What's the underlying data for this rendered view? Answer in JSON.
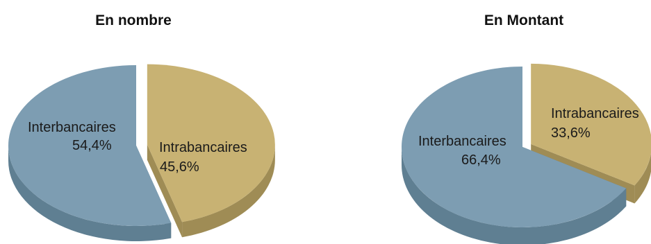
{
  "chart_data": [
    {
      "type": "pie",
      "title": "En nombre",
      "slices": [
        {
          "label": "Interbancaires",
          "value": 54.4,
          "display": "54,4%",
          "color": "#7d9db2",
          "side": "#5f7f92"
        },
        {
          "label": "Intrabancaires",
          "value": 45.6,
          "display": "45,6%",
          "color": "#c8b273",
          "side": "#9f8c55"
        }
      ],
      "exploded_slice": "Intrabancaires",
      "style": "3d"
    },
    {
      "type": "pie",
      "title": "En Montant",
      "slices": [
        {
          "label": "Interbancaires",
          "value": 66.4,
          "display": "66,4%",
          "color": "#7d9db2",
          "side": "#5f7f92"
        },
        {
          "label": "Intrabancaires",
          "value": 33.6,
          "display": "33,6%",
          "color": "#c8b273",
          "side": "#9f8c55"
        }
      ],
      "exploded_slice": "Intrabancaires",
      "style": "3d"
    }
  ]
}
